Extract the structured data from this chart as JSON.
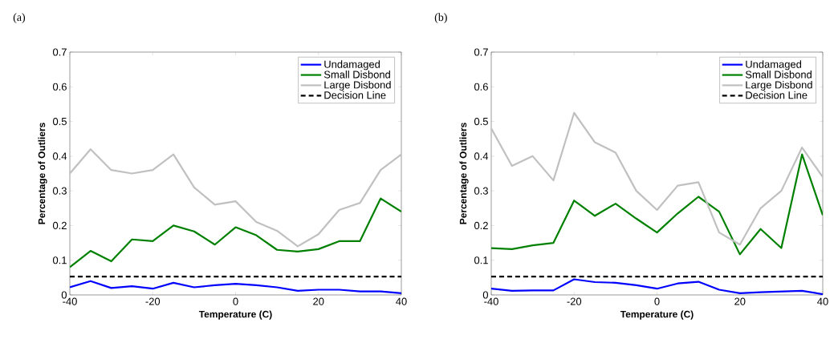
{
  "chart_data": [
    {
      "type": "line",
      "title": "(a)",
      "xlabel": "Temperature (C)",
      "ylabel": "Percentage of Outliers",
      "x": [
        -40,
        -35,
        -30,
        -25,
        -20,
        -15,
        -10,
        -5,
        0,
        5,
        10,
        15,
        20,
        25,
        30,
        35,
        40
      ],
      "series": [
        {
          "name": "Undamaged",
          "color": "#0000ff",
          "values": [
            0.022,
            0.04,
            0.02,
            0.025,
            0.018,
            0.035,
            0.022,
            0.028,
            0.032,
            0.028,
            0.022,
            0.012,
            0.015,
            0.015,
            0.01,
            0.01,
            0.005
          ]
        },
        {
          "name": "Small Disbond",
          "color": "#008000",
          "values": [
            0.08,
            0.127,
            0.097,
            0.16,
            0.155,
            0.2,
            0.183,
            0.145,
            0.195,
            0.172,
            0.13,
            0.125,
            0.132,
            0.155,
            0.155,
            0.278,
            0.24
          ]
        },
        {
          "name": "Large Disbond",
          "color": "#c0c0c0",
          "values": [
            0.35,
            0.42,
            0.36,
            0.35,
            0.36,
            0.405,
            0.31,
            0.26,
            0.27,
            0.21,
            0.185,
            0.14,
            0.175,
            0.245,
            0.265,
            0.36,
            0.405
          ]
        }
      ],
      "ref_lines": [
        {
          "axis": "y",
          "value": 0.053,
          "label": "Decision Line",
          "color": "#000000",
          "line_style": "dashed"
        }
      ],
      "xlim": [
        -40,
        40
      ],
      "ylim": [
        0,
        0.7
      ],
      "xticks": [
        -40,
        -20,
        0,
        20,
        40
      ],
      "yticks": [
        0,
        0.1,
        0.2,
        0.3,
        0.4,
        0.5,
        0.6,
        0.7
      ],
      "grid": false,
      "legend": "top right",
      "marker": "none",
      "line_style": "solid"
    },
    {
      "type": "line",
      "title": "(b)",
      "xlabel": "Temperature (C)",
      "ylabel": "Percentage of Outliers",
      "x": [
        -40,
        -35,
        -30,
        -25,
        -20,
        -15,
        -10,
        -5,
        0,
        5,
        10,
        15,
        20,
        25,
        30,
        35,
        40
      ],
      "series": [
        {
          "name": "Undamaged",
          "color": "#0000ff",
          "values": [
            0.018,
            0.012,
            0.013,
            0.013,
            0.045,
            0.037,
            0.035,
            0.028,
            0.018,
            0.033,
            0.038,
            0.015,
            0.005,
            0.008,
            0.01,
            0.012,
            0.002
          ]
        },
        {
          "name": "Small Disbond",
          "color": "#008000",
          "values": [
            0.135,
            0.132,
            0.143,
            0.15,
            0.272,
            0.228,
            0.263,
            0.22,
            0.18,
            0.235,
            0.283,
            0.24,
            0.117,
            0.19,
            0.135,
            0.405,
            0.23
          ]
        },
        {
          "name": "Large Disbond",
          "color": "#c0c0c0",
          "values": [
            0.48,
            0.372,
            0.4,
            0.33,
            0.525,
            0.44,
            0.41,
            0.3,
            0.245,
            0.315,
            0.325,
            0.18,
            0.145,
            0.25,
            0.3,
            0.425,
            0.34
          ]
        }
      ],
      "ref_lines": [
        {
          "axis": "y",
          "value": 0.053,
          "label": "Decision Line",
          "color": "#000000",
          "line_style": "dashed"
        }
      ],
      "xlim": [
        -40,
        40
      ],
      "ylim": [
        0,
        0.7
      ],
      "xticks": [
        -40,
        -20,
        0,
        20,
        40
      ],
      "yticks": [
        0,
        0.1,
        0.2,
        0.3,
        0.4,
        0.5,
        0.6,
        0.7
      ],
      "grid": false,
      "legend": "top right",
      "marker": "none",
      "line_style": "solid"
    }
  ]
}
